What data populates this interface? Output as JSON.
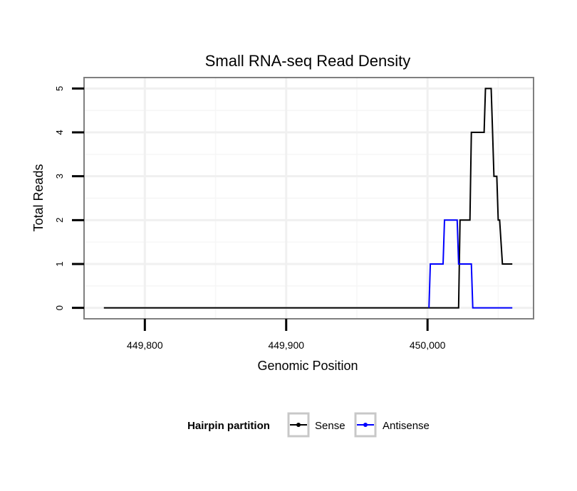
{
  "chart_data": {
    "type": "line",
    "title": "Small RNA-seq Read Density",
    "xlabel": "Genomic Position",
    "ylabel": "Total Reads",
    "xlim": [
      449757,
      450075
    ],
    "ylim": [
      -0.25,
      5.25
    ],
    "xticks": [
      449800,
      449900,
      450000
    ],
    "xtick_labels": [
      "449,800",
      "449,900",
      "450,000"
    ],
    "yticks": [
      0,
      1,
      2,
      3,
      4,
      5
    ],
    "ytick_labels": [
      "0",
      "1",
      "2",
      "3",
      "4",
      "5"
    ],
    "grid": true,
    "legend_title": "Hairpin partition",
    "legend_position": "bottom",
    "series": [
      {
        "name": "Sense",
        "color": "#000000",
        "x": [
          449771,
          450022,
          450023,
          450030,
          450031,
          450040,
          450041,
          450045,
          450046,
          450047,
          450049,
          450050,
          450051,
          450053,
          450060
        ],
        "y": [
          0,
          0,
          2,
          2,
          4,
          4,
          5,
          5,
          4,
          3,
          3,
          2,
          2,
          1,
          1
        ]
      },
      {
        "name": "Antisense",
        "color": "#0000ff",
        "x": [
          450001,
          450002,
          450011,
          450012,
          450021,
          450022,
          450031,
          450032,
          450060
        ],
        "y": [
          0,
          1,
          1,
          2,
          2,
          1,
          1,
          0,
          0
        ]
      }
    ]
  }
}
